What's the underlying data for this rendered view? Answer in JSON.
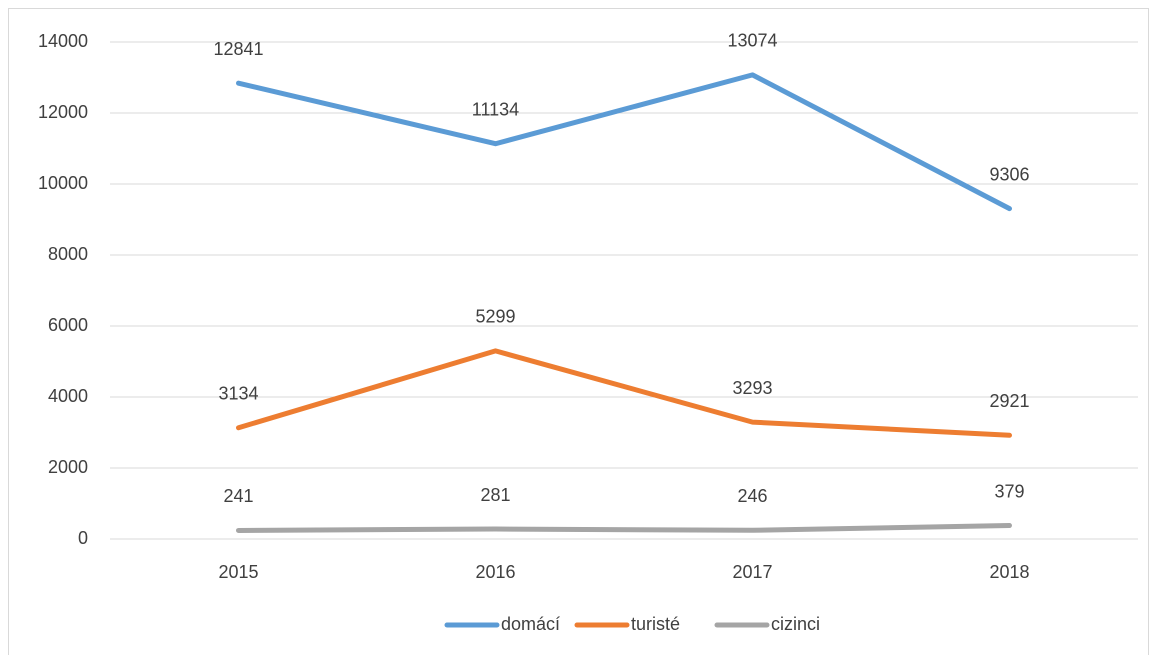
{
  "chart_data": {
    "type": "line",
    "categories": [
      "2015",
      "2016",
      "2017",
      "2018"
    ],
    "series": [
      {
        "name": "domácí",
        "color": "#5b9bd5",
        "values": [
          12841,
          11134,
          13074,
          9306
        ]
      },
      {
        "name": "turisté",
        "color": "#ed7d31",
        "values": [
          3134,
          5299,
          3293,
          2921
        ]
      },
      {
        "name": "cizinci",
        "color": "#a5a5a5",
        "values": [
          241,
          281,
          246,
          379
        ]
      }
    ],
    "ylim": [
      0,
      14000
    ],
    "yticks": [
      0,
      2000,
      4000,
      6000,
      8000,
      10000,
      12000,
      14000
    ],
    "grid": true,
    "legend": "bottom"
  }
}
